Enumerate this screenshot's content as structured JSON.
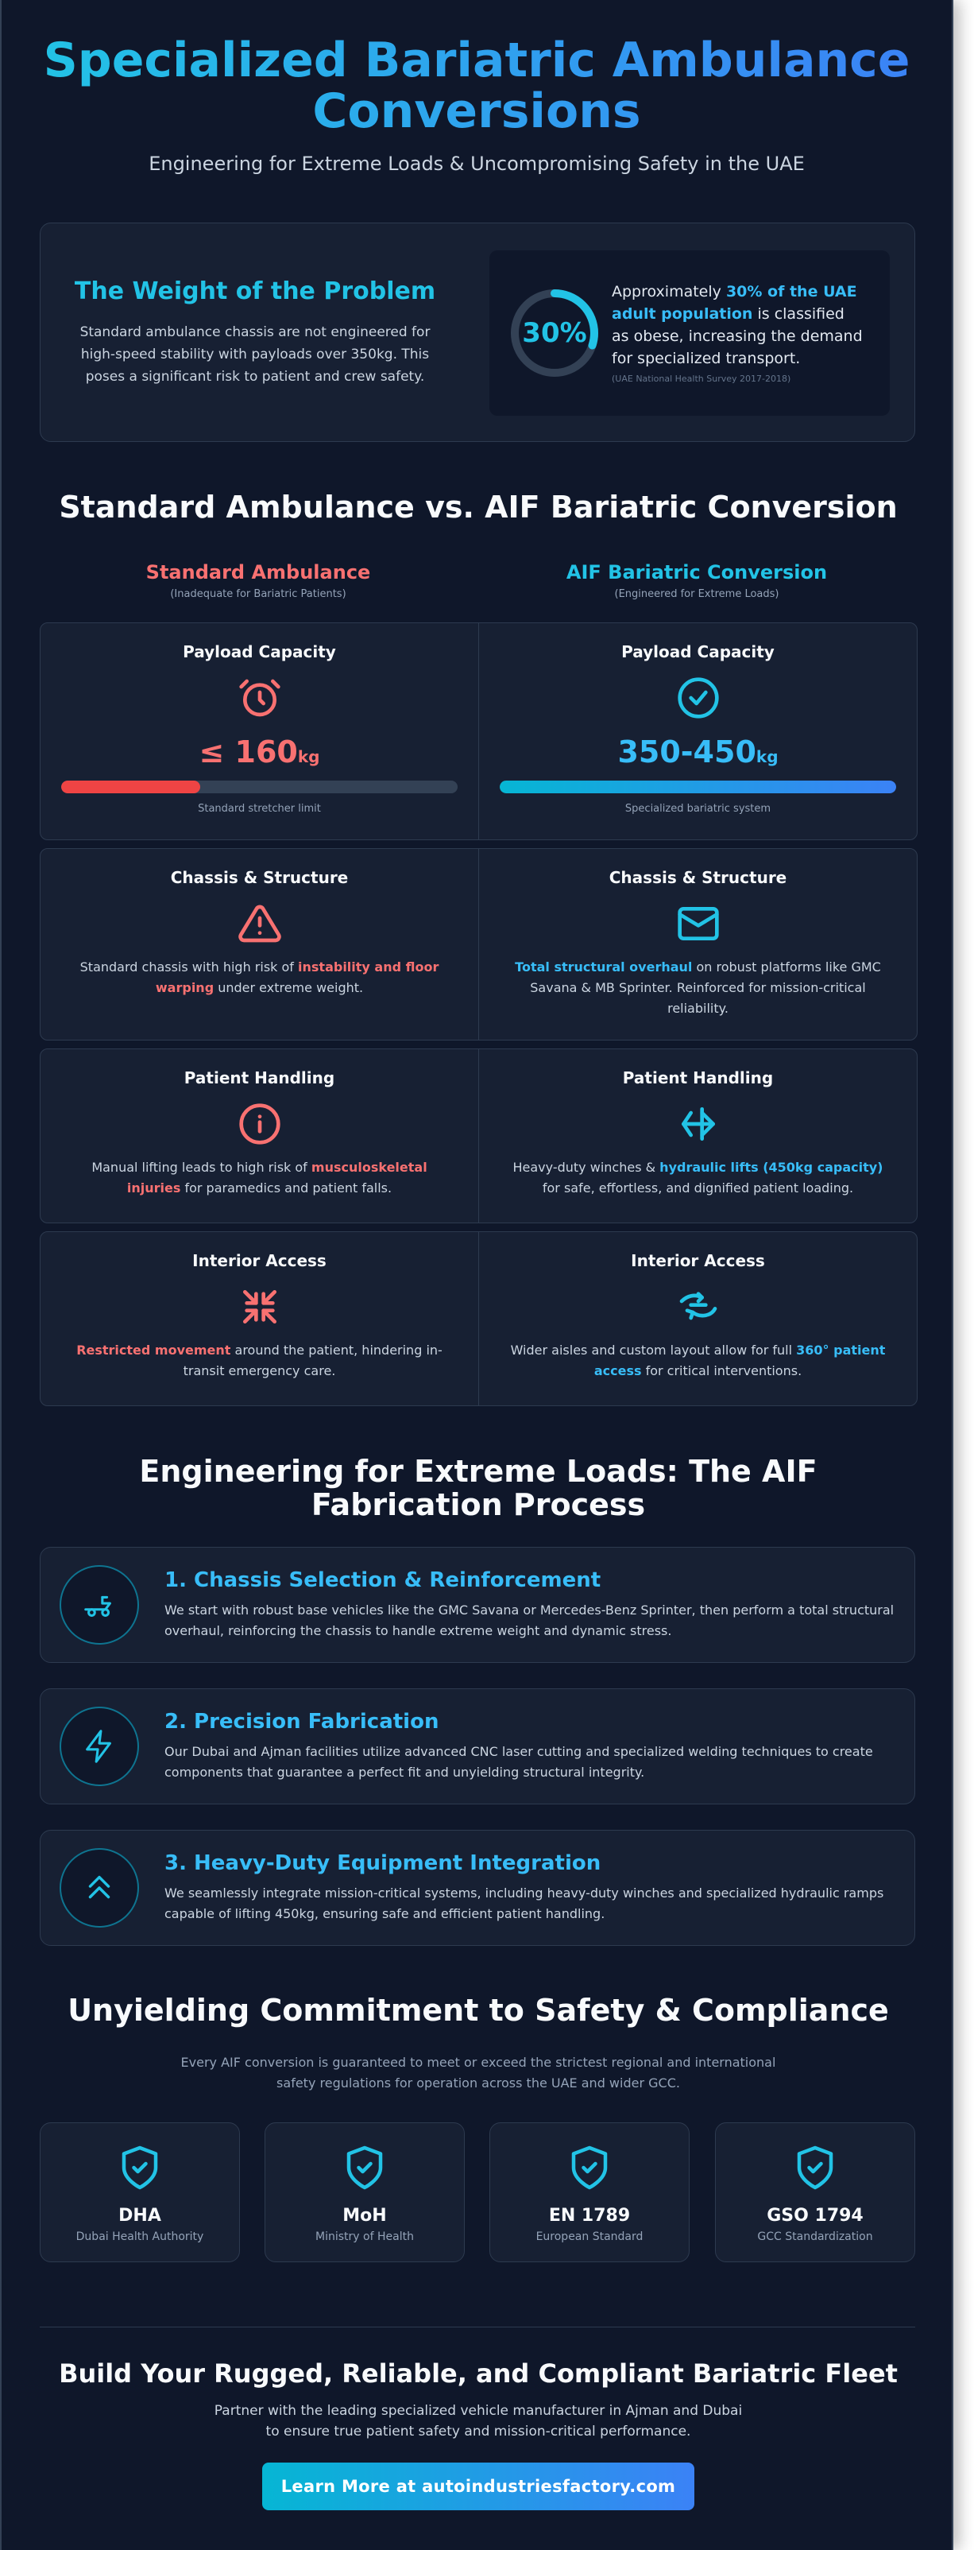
{
  "hero": {
    "title": "Specialized Bariatric Ambulance Conversions",
    "subtitle": "Engineering for Extreme Loads & Uncompromising Safety in the UAE"
  },
  "problem": {
    "title": "The Weight of the Problem",
    "text": "Standard ambulance chassis are not engineered for high-speed stability with payloads over 350kg. This poses a significant risk to patient and crew safety.",
    "stat_value": "30%",
    "stat_fraction": 0.3,
    "stat_pre": "Approximately ",
    "stat_highlight": "30% of the UAE adult population",
    "stat_post": " is classified as obese, increasing the demand for specialized transport.",
    "stat_source": "(UAE National Health Survey 2017-2018)"
  },
  "comparison": {
    "title": "Standard Ambulance vs. AIF Bariatric Conversion",
    "left_title": "Standard Ambulance",
    "left_sub": "(Inadequate for Bariatric Patients)",
    "right_title": "AIF Bariatric Conversion",
    "right_sub": "(Engineered for Extreme Loads)",
    "payload": {
      "title": "Payload Capacity",
      "left_value": "≤ 160",
      "left_unit": "kg",
      "left_fill": 0.35,
      "left_note": "Standard stretcher limit",
      "right_value": "350-450",
      "right_unit": "kg",
      "right_fill": 1.0,
      "right_note": "Specialized bariatric system"
    },
    "chassis": {
      "title": "Chassis & Structure",
      "left_pre": "Standard chassis with high risk of ",
      "left_hl": "instability and floor warping",
      "left_post": " under extreme weight.",
      "right_hl": "Total structural overhaul",
      "right_post": " on robust platforms like GMC Savana & MB Sprinter. Reinforced for mission-critical reliability."
    },
    "handling": {
      "title": "Patient Handling",
      "left_pre": "Manual lifting leads to high risk of ",
      "left_hl": "musculoskeletal injuries",
      "left_post": " for paramedics and patient falls.",
      "right_pre": "Heavy-duty winches & ",
      "right_hl": "hydraulic lifts (450kg capacity)",
      "right_post": " for safe, effortless, and dignified patient loading."
    },
    "access": {
      "title": "Interior Access",
      "left_hl": "Restricted movement",
      "left_post": " around the patient, hindering in-transit emergency care.",
      "right_pre": "Wider aisles and custom layout allow for full ",
      "right_hl": "360° patient access",
      "right_post": " for critical interventions."
    }
  },
  "process": {
    "title": "Engineering for Extreme Loads: The AIF Fabrication Process",
    "steps": [
      {
        "title": "1. Chassis Selection & Reinforcement",
        "text": "We start with robust base vehicles like the GMC Savana or Mercedes-Benz Sprinter, then perform a total structural overhaul, reinforcing the chassis to handle extreme weight and dynamic stress."
      },
      {
        "title": "2. Precision Fabrication",
        "text": "Our Dubai and Ajman facilities utilize advanced CNC laser cutting and specialized welding techniques to create components that guarantee a perfect fit and unyielding structural integrity."
      },
      {
        "title": "3. Heavy-Duty Equipment Integration",
        "text": "We seamlessly integrate mission-critical systems, including heavy-duty winches and specialized hydraulic ramps capable of lifting 450kg, ensuring safe and efficient patient handling."
      }
    ]
  },
  "compliance": {
    "title": "Unyielding Commitment to Safety & Compliance",
    "lead": "Every AIF conversion is guaranteed to meet or exceed the strictest regional and international safety regulations for operation across the UAE and wider GCC.",
    "badges": [
      {
        "name": "DHA",
        "desc": "Dubai Health Authority"
      },
      {
        "name": "MoH",
        "desc": "Ministry of Health"
      },
      {
        "name": "EN 1789",
        "desc": "European Standard"
      },
      {
        "name": "GSO 1794",
        "desc": "GCC Standardization"
      }
    ]
  },
  "cta": {
    "title": "Build Your Rugged, Reliable, and Compliant Bariatric Fleet",
    "text": "Partner with the leading specialized vehicle manufacturer in Ajman and Dubai to ensure true patient safety and mission-critical performance.",
    "button": "Learn More at autoindustriesfactory.com"
  },
  "colors": {
    "accent": "#22c3e6",
    "danger": "#f87171",
    "background": "#0f172a",
    "card": "#172033"
  }
}
